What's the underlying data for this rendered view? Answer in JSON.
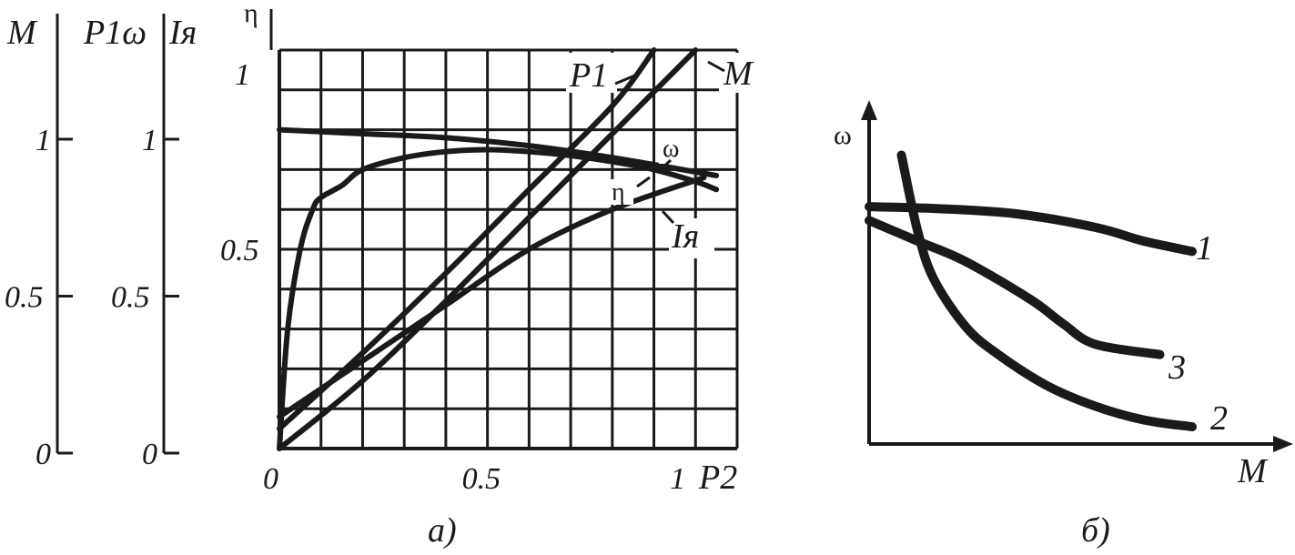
{
  "chart_data": [
    {
      "panel": "a)",
      "type": "line",
      "xlabel": "P2",
      "x_ticks": [
        "0",
        "0.5",
        "1"
      ],
      "xlim": [
        0,
        1.1
      ],
      "ylim": [
        0,
        1.0
      ],
      "grid": true,
      "scales": [
        {
          "label": "M",
          "ticks": [
            "0",
            "0.5",
            "1"
          ],
          "range": [
            0,
            1.4
          ]
        },
        {
          "label": "P1ω",
          "ticks": [
            "0",
            "0.5",
            "1"
          ],
          "range": [
            0,
            1.4
          ]
        },
        {
          "label": "Iя",
          "ticks": [],
          "range": [
            0,
            1.4
          ]
        },
        {
          "label": "η",
          "ticks": [
            "0.5",
            "1"
          ],
          "range": [
            0,
            1.0
          ]
        }
      ],
      "series": [
        {
          "name": "ω",
          "x": [
            0,
            0.2,
            0.4,
            0.6,
            0.8,
            1.05
          ],
          "y": [
            0.8,
            0.79,
            0.78,
            0.76,
            0.73,
            0.685
          ]
        },
        {
          "name": "η",
          "x": [
            0,
            0.02,
            0.05,
            0.08,
            0.1,
            0.15,
            0.2,
            0.3,
            0.4,
            0.5,
            0.6,
            0.7,
            0.8,
            0.9,
            1.0,
            1.05
          ],
          "y": [
            0,
            0.3,
            0.5,
            0.6,
            0.63,
            0.66,
            0.7,
            0.73,
            0.745,
            0.75,
            0.745,
            0.735,
            0.72,
            0.7,
            0.67,
            0.65
          ]
        },
        {
          "name": "P1",
          "x": [
            0,
            0.2,
            0.4,
            0.6,
            0.8,
            0.9
          ],
          "y": [
            0.05,
            0.24,
            0.44,
            0.65,
            0.86,
            1.0
          ]
        },
        {
          "name": "M",
          "x": [
            0,
            0.2,
            0.4,
            0.6,
            0.8,
            1.0
          ],
          "y": [
            0,
            0.17,
            0.37,
            0.58,
            0.79,
            1.0
          ]
        },
        {
          "name": "Iя",
          "x": [
            0,
            0.2,
            0.4,
            0.6,
            0.8,
            1.02
          ],
          "y": [
            0.08,
            0.22,
            0.36,
            0.5,
            0.6,
            0.68
          ]
        }
      ]
    },
    {
      "panel": "б)",
      "type": "line",
      "xlabel": "M",
      "ylabel": "ω",
      "grid": false,
      "xlim": [
        0,
        1
      ],
      "ylim": [
        0,
        1
      ],
      "series": [
        {
          "name": "1",
          "x": [
            0,
            0.2,
            0.45,
            0.7,
            0.85,
            1.0
          ],
          "y": [
            0.69,
            0.685,
            0.67,
            0.63,
            0.59,
            0.56
          ]
        },
        {
          "name": "2",
          "x": [
            0.1,
            0.15,
            0.2,
            0.3,
            0.4,
            0.55,
            0.7,
            0.85,
            1.0
          ],
          "y": [
            0.84,
            0.62,
            0.48,
            0.34,
            0.26,
            0.17,
            0.11,
            0.07,
            0.05
          ]
        },
        {
          "name": "3",
          "x": [
            0,
            0.15,
            0.3,
            0.5,
            0.6,
            0.7,
            0.9
          ],
          "y": [
            0.65,
            0.59,
            0.53,
            0.42,
            0.35,
            0.29,
            0.26
          ]
        }
      ]
    }
  ]
}
